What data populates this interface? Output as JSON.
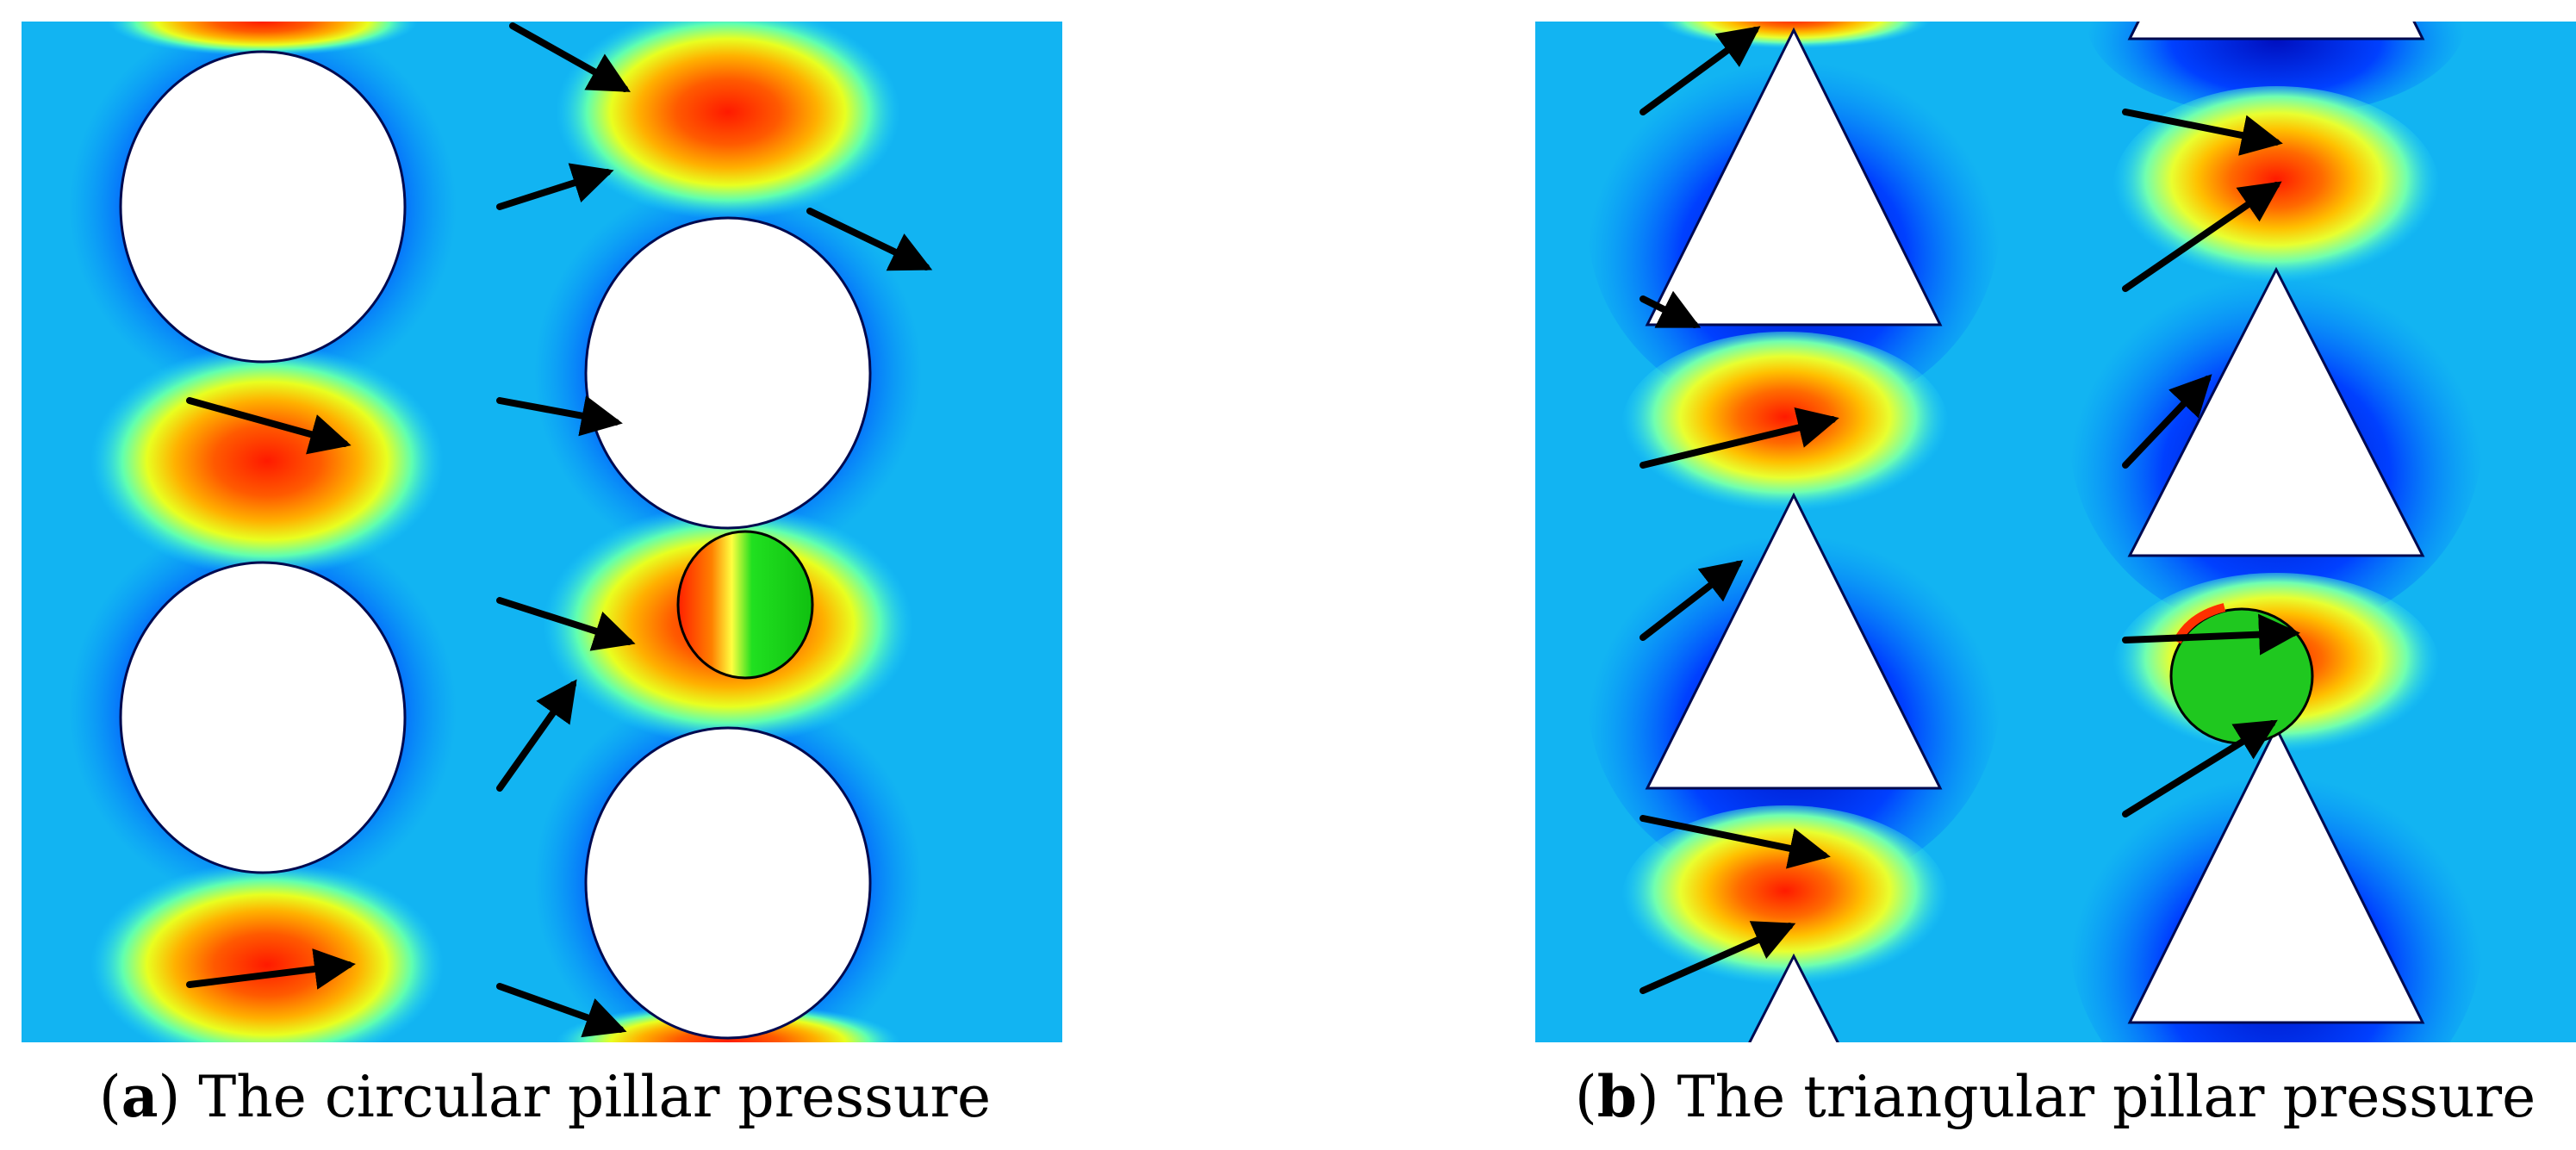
{
  "panels": [
    {
      "id": "a",
      "caption_label": "a",
      "caption_text": "The circular pillar pressure",
      "pillar_shape": "circle",
      "colormap": [
        "#00008f",
        "#0000ff",
        "#0080ff",
        "#00e0ff",
        "#80ff80",
        "#ffff00",
        "#ff8000",
        "#ff0000"
      ]
    },
    {
      "id": "b",
      "caption_label": "b",
      "caption_text": "The triangular pillar pressure",
      "pillar_shape": "triangle",
      "colormap": [
        "#00008f",
        "#0000ff",
        "#0080ff",
        "#00e0ff",
        "#80ff80",
        "#ffff00",
        "#ff8000",
        "#ff0000"
      ]
    }
  ],
  "particle_color": "#1fc81f"
}
